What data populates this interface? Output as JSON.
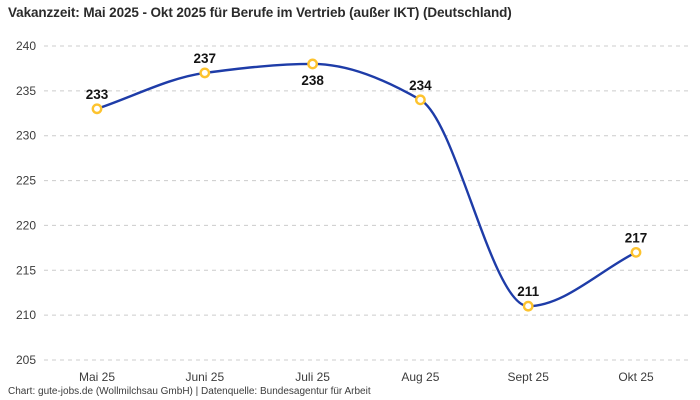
{
  "title": "Vakanzzeit: Mai 2025 - Okt 2025 für Berufe im Vertrieb (außer IKT) (Deutschland)",
  "footer": "Chart: gute-jobs.de (Wollmilchsau GmbH) | Datenquelle: Bundesagentur für Arbeit",
  "chart_data": {
    "type": "line",
    "title": "Vakanzzeit: Mai 2025 - Okt 2025 für Berufe im Vertrieb (außer IKT) (Deutschland)",
    "categories": [
      "Mai 25",
      "Juni 25",
      "Juli 25",
      "Aug 25",
      "Sept 25",
      "Okt 25"
    ],
    "values": [
      233,
      237,
      238,
      234,
      211,
      217
    ],
    "label_positions": [
      "above",
      "above",
      "below",
      "above",
      "above",
      "above"
    ],
    "ylim": [
      205,
      240
    ],
    "yticks": [
      205,
      210,
      215,
      220,
      225,
      230,
      235,
      240
    ],
    "xlabel": "",
    "ylabel": "",
    "grid": "horizontal-dashed",
    "legend": "none",
    "curve": "monotone-smooth",
    "colors": {
      "line": "#1e3ca8",
      "marker_ring": "#fdc32e",
      "marker_fill": "#ffffff",
      "grid": "#cccccc",
      "tick_text": "#3c3c3c",
      "value_text": "#141414"
    }
  }
}
